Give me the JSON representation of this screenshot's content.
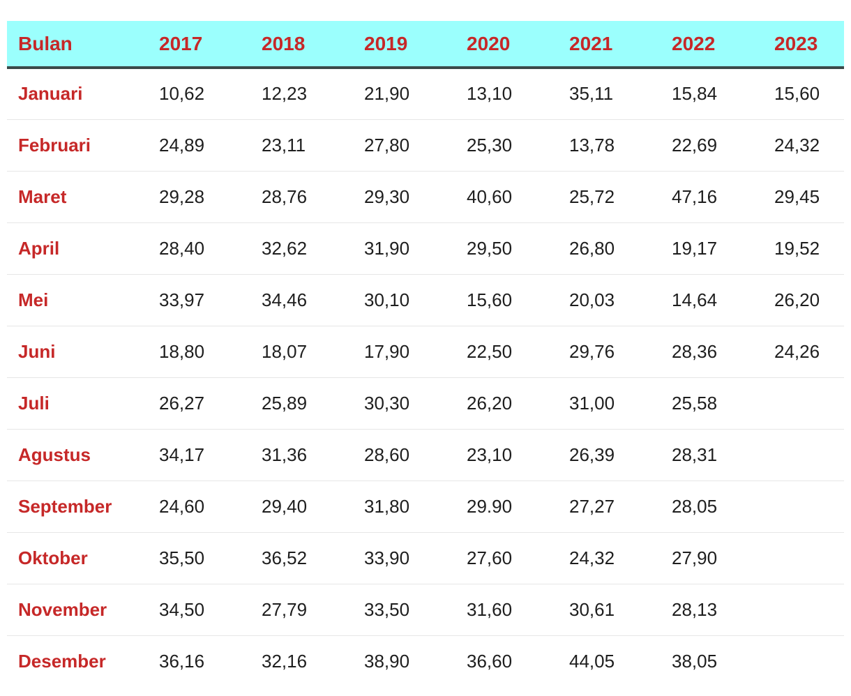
{
  "table": {
    "headers": [
      "Bulan",
      "2017",
      "2018",
      "2019",
      "2020",
      "2021",
      "2022",
      "2023"
    ],
    "rows": [
      {
        "month": "Januari",
        "values": [
          "10,62",
          "12,23",
          "21,90",
          "13,10",
          "35,11",
          "15,84",
          "15,60"
        ]
      },
      {
        "month": "Februari",
        "values": [
          "24,89",
          "23,11",
          "27,80",
          "25,30",
          "13,78",
          "22,69",
          "24,32"
        ]
      },
      {
        "month": "Maret",
        "values": [
          "29,28",
          "28,76",
          "29,30",
          "40,60",
          "25,72",
          "47,16",
          "29,45"
        ]
      },
      {
        "month": "April",
        "values": [
          "28,40",
          "32,62",
          "31,90",
          "29,50",
          "26,80",
          "19,17",
          "19,52"
        ]
      },
      {
        "month": "Mei",
        "values": [
          "33,97",
          "34,46",
          "30,10",
          "15,60",
          "20,03",
          "14,64",
          "26,20"
        ]
      },
      {
        "month": "Juni",
        "values": [
          "18,80",
          "18,07",
          "17,90",
          "22,50",
          "29,76",
          "28,36",
          "24,26"
        ]
      },
      {
        "month": "Juli",
        "values": [
          "26,27",
          "25,89",
          "30,30",
          "26,20",
          "31,00",
          "25,58",
          ""
        ]
      },
      {
        "month": "Agustus",
        "values": [
          "34,17",
          "31,36",
          "28,60",
          "23,10",
          "26,39",
          "28,31",
          ""
        ]
      },
      {
        "month": "September",
        "values": [
          "24,60",
          "29,40",
          "31,80",
          "29.90",
          "27,27",
          "28,05",
          ""
        ]
      },
      {
        "month": "Oktober",
        "values": [
          "35,50",
          "36,52",
          "33,90",
          "27,60",
          "24,32",
          "27,90",
          ""
        ]
      },
      {
        "month": "November",
        "values": [
          "34,50",
          "27,79",
          "33,50",
          "31,60",
          "30,61",
          "28,13",
          ""
        ]
      },
      {
        "month": "Desember",
        "values": [
          "36,16",
          "32,16",
          "38,90",
          "36,60",
          "44,05",
          "38,05",
          ""
        ]
      }
    ]
  },
  "colors": {
    "header_background": "#9bfffd",
    "header_text": "#c62828",
    "month_text": "#c62828",
    "value_text": "#1e1e1e",
    "header_rule": "#3a4a4a",
    "row_divider": "#e6e6e6"
  }
}
